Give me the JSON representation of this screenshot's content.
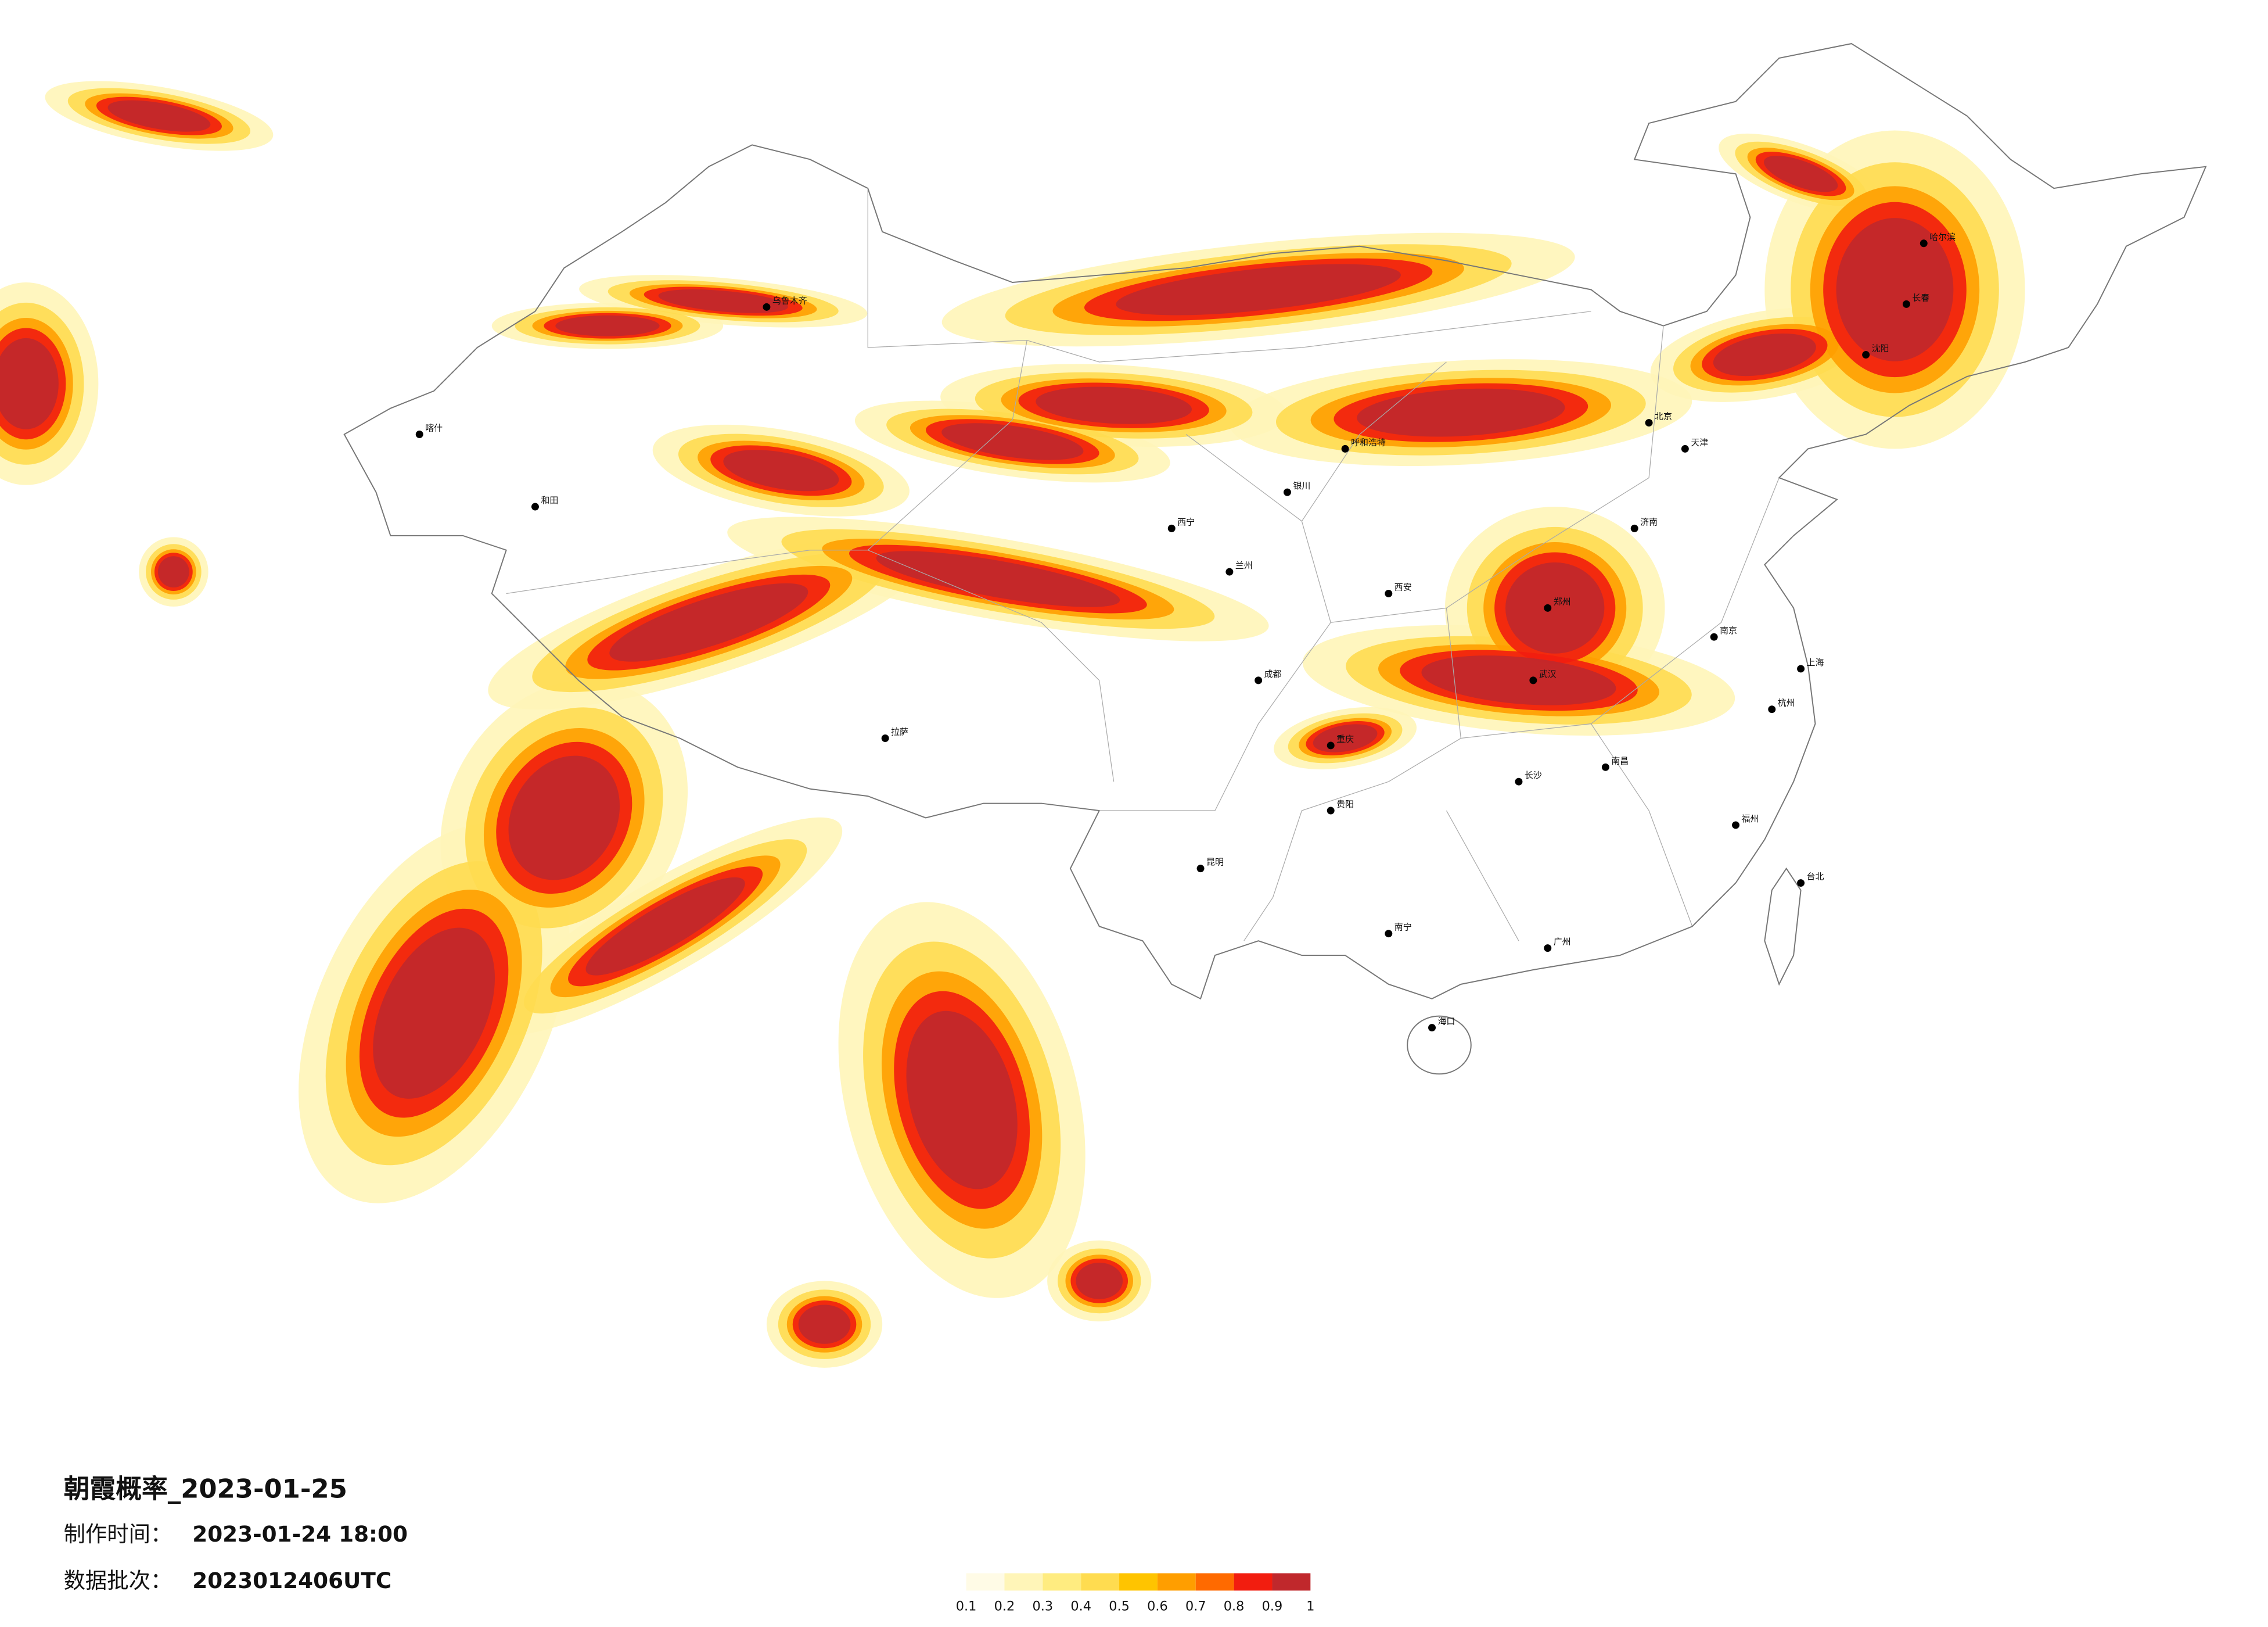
{
  "map": {
    "title": "朝霞概率_2023-01-25",
    "made_label": "制作时间：",
    "made_time": "2023-01-24 18:00",
    "batch_label": "数据批次：",
    "batch": "2023012406UTC",
    "legend": {
      "ticks": [
        0.1,
        0.2,
        0.3,
        0.4,
        0.5,
        0.6,
        0.7,
        0.8,
        0.9,
        1
      ],
      "colors": [
        "#fffbe6",
        "#fff5b8",
        "#ffec80",
        "#ffdc50",
        "#ffc400",
        "#ff9e00",
        "#ff6a00",
        "#f21d0f",
        "#c0282c"
      ]
    },
    "cities": [
      "乌鲁木齐",
      "喀什",
      "和田",
      "拉萨",
      "西宁",
      "兰州",
      "银川",
      "呼和浩特",
      "北京",
      "天津",
      "哈尔滨",
      "长春",
      "沈阳",
      "济南",
      "郑州",
      "西安",
      "成都",
      "重庆",
      "武汉",
      "南京",
      "上海",
      "杭州",
      "长沙",
      "南昌",
      "福州",
      "贵阳",
      "昆明",
      "南宁",
      "广州",
      "海口",
      "台北"
    ]
  }
}
